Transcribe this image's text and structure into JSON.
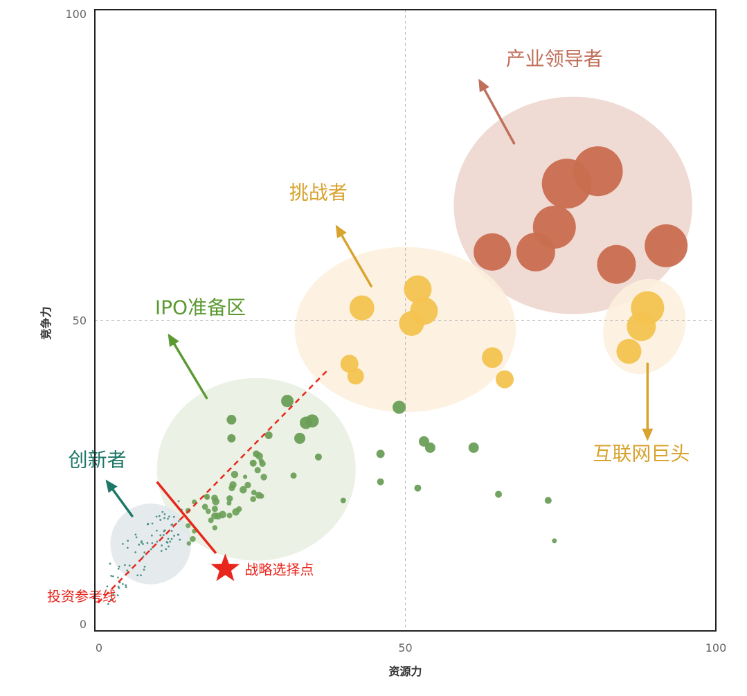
{
  "chart_data": {
    "type": "scatter",
    "xlabel": "资源力",
    "ylabel": "竞争力",
    "xlim": [
      0,
      100
    ],
    "ylim": [
      0,
      100
    ],
    "xticks": [
      "0",
      "50",
      "100"
    ],
    "yticks": [
      "0",
      "50",
      "100"
    ],
    "quadrant_lines": {
      "x": 50,
      "y": 50
    },
    "colors": {
      "leader": "#c96e50",
      "challenger": "#f3c350",
      "ipo": "#6a9e57",
      "innovator": "#3e8a7c",
      "reference": "#e8261c"
    },
    "groups": [
      {
        "name": "产业领导者",
        "color": "#c96e50",
        "label_color": "#c0705a",
        "zone": {
          "cx": 77,
          "cy": 68.5,
          "rx": 19.2,
          "ry": 17.5,
          "fill": "#ecd3cc"
        },
        "label_at": {
          "x": 74,
          "y": 91
        },
        "arrow": [
          [
            67.5,
            78.5
          ],
          [
            62,
            88.5
          ]
        ],
        "points": [
          [
            76,
            72
          ],
          [
            81,
            74
          ],
          [
            74,
            65
          ],
          [
            71,
            61
          ],
          [
            64,
            61
          ],
          [
            84,
            59
          ],
          [
            92,
            62
          ]
        ],
        "sizes": [
          36,
          36,
          31,
          28,
          27,
          28,
          31
        ]
      },
      {
        "name": "挑战者",
        "color": "#f3c350",
        "label_color": "#d8a32f",
        "zone": {
          "cx": 50,
          "cy": 48.5,
          "rx": 17.8,
          "ry": 13.3,
          "fill": "#fdf0dc"
        },
        "label_at": {
          "x": 36,
          "y": 69.5
        },
        "arrow": [
          [
            44.5,
            55.5
          ],
          [
            39,
            65
          ]
        ],
        "points": [
          [
            43,
            52
          ],
          [
            52,
            55
          ],
          [
            53,
            51.5
          ],
          [
            51,
            49.5
          ],
          [
            41,
            43
          ],
          [
            42,
            41
          ],
          [
            64,
            44
          ],
          [
            66,
            40.5
          ]
        ],
        "sizes": [
          18,
          20,
          20,
          18,
          13,
          12,
          15,
          13
        ]
      },
      {
        "name": "互联网巨头",
        "color": "#f3c350",
        "label_color": "#d8a32f",
        "zone": {
          "cx": 88.5,
          "cy": 49,
          "rx": 6.5,
          "ry": 7.8,
          "fill": "#fdf0dc"
        },
        "label_at": {
          "x": 88,
          "y": 27.5
        },
        "arrow": [
          [
            89,
            43
          ],
          [
            89,
            31
          ]
        ],
        "points": [
          [
            89,
            52
          ],
          [
            88,
            49
          ],
          [
            86,
            45
          ]
        ],
        "sizes": [
          24,
          21,
          18
        ]
      },
      {
        "name": "IPO准备区",
        "color": "#6a9e57",
        "label_color": "#5b9a32",
        "zone": {
          "cx": 26,
          "cy": 26,
          "rx": 16,
          "ry": 14.7,
          "fill": "#e8eedf"
        },
        "label_at": {
          "x": 17,
          "y": 51
        },
        "arrow": [
          [
            18,
            37.5
          ],
          [
            12,
            47.5
          ]
        ],
        "points": [
          [
            31,
            37
          ],
          [
            22,
            34
          ],
          [
            22,
            31
          ],
          [
            28,
            31.5
          ],
          [
            33,
            31
          ],
          [
            34,
            33.5
          ],
          [
            35,
            33.8
          ],
          [
            26,
            28.5
          ],
          [
            36,
            28
          ],
          [
            25.5,
            27
          ],
          [
            32,
            25
          ],
          [
            40,
            21
          ],
          [
            46,
            28.5
          ],
          [
            54,
            29.5
          ],
          [
            53,
            30.5
          ],
          [
            61,
            29.5
          ],
          [
            46,
            24
          ],
          [
            52,
            23
          ],
          [
            65,
            22
          ],
          [
            73,
            21
          ],
          [
            74,
            14.5
          ],
          [
            49,
            36
          ]
        ],
        "sizes": [
          9,
          7,
          6,
          5.5,
          8,
          9,
          9.5,
          5,
          5,
          5,
          4.5,
          4,
          6,
          7.5,
          7.5,
          7.5,
          5,
          5,
          5,
          5,
          3.5,
          9.5
        ],
        "scatter_seed": 7,
        "scatter_count": 38,
        "scatter_box": [
          15,
          16,
          28,
          28
        ]
      },
      {
        "name": "创新者",
        "color": "#3e8a7c",
        "label_color": "#1e7767",
        "zone": {
          "cx": 9,
          "cy": 14,
          "rx": 6.5,
          "ry": 6.5,
          "fill": "#e0e8ea"
        },
        "label_at": {
          "x": 0.4,
          "y": 26.5
        },
        "arrow": [
          [
            6,
            18.5
          ],
          [
            2,
            24
          ]
        ],
        "scatter_seed": 3,
        "scatter_count": 80,
        "scatter_box": [
          2,
          8,
          14,
          20
        ]
      }
    ],
    "reference_line": {
      "label": "投资参考线",
      "from": [
        0.5,
        4.5
      ],
      "to": [
        37.5,
        42
      ]
    },
    "cut_line": {
      "from": [
        10,
        24
      ],
      "to": [
        19.5,
        12.5
      ]
    },
    "strategic_point": {
      "label": "战略选择点",
      "x": 21,
      "y": 10
    }
  }
}
